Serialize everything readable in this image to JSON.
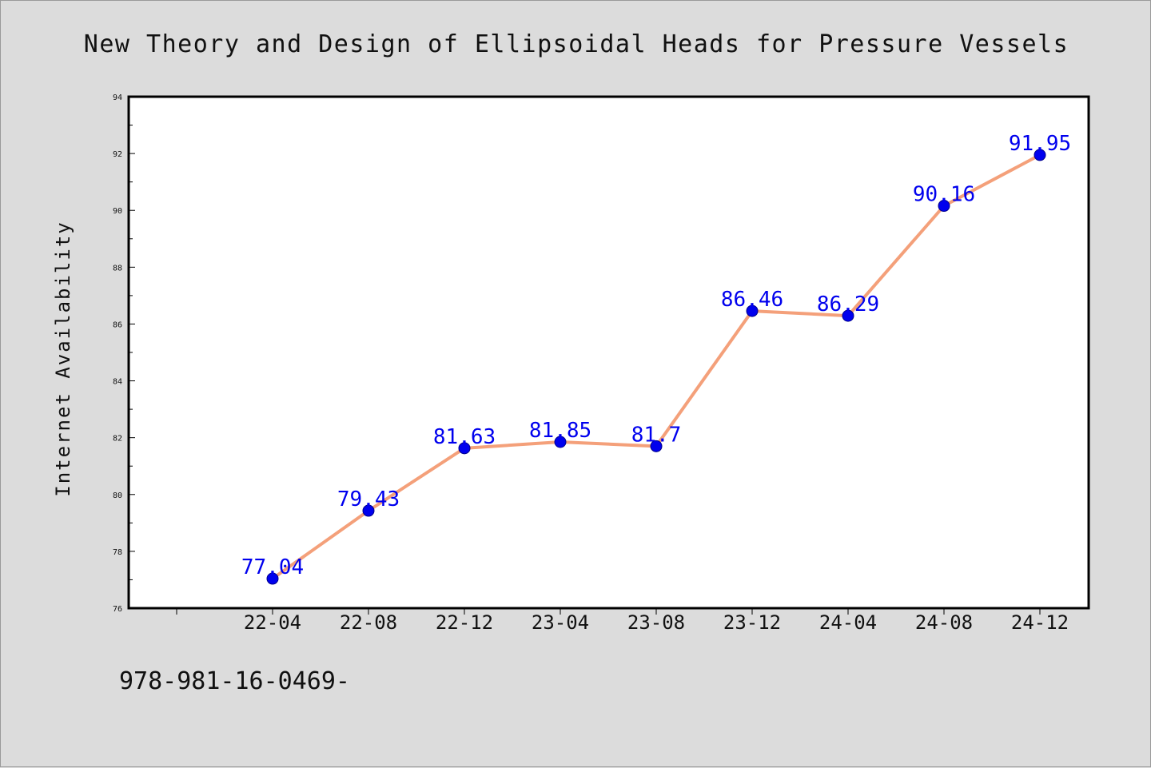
{
  "isbn_text": "978-981-16-0469-",
  "chart_data": {
    "type": "line",
    "title": "New Theory and Design of Ellipsoidal Heads for Pressure Vessels",
    "xlabel": "",
    "ylabel": "Internet Availability",
    "categories": [
      "22-04",
      "22-08",
      "22-12",
      "23-04",
      "23-08",
      "23-12",
      "24-04",
      "24-08",
      "24-12"
    ],
    "values": [
      77.04,
      79.43,
      81.63,
      81.85,
      81.7,
      86.46,
      86.29,
      90.16,
      91.95
    ],
    "data_labels": [
      "77.04",
      "79.43",
      "81.63",
      "81.85",
      "81.7",
      "86.46",
      "86.29",
      "90.16",
      "91.95"
    ],
    "ylim": [
      76,
      94
    ],
    "yticks": [
      76,
      78,
      80,
      82,
      84,
      86,
      88,
      90,
      92,
      94
    ],
    "grid": false,
    "legend": "none",
    "colors": {
      "line": "#f4a07a",
      "marker": "#0000ee",
      "label": "#0000ee"
    }
  }
}
